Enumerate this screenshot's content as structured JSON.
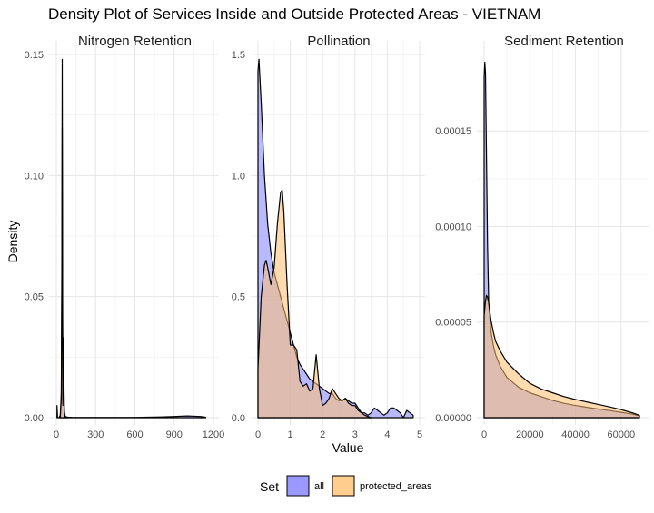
{
  "title": "Density Plot of Services Inside and Outside Protected Areas - VIETNAM",
  "colors": {
    "all_fill": "#8080ff",
    "protected_fill": "#ffc070",
    "grid_major": "#e6e6e6",
    "grid_minor": "#f2f2f2",
    "outline": "#000000"
  },
  "chart_data": [
    {
      "type": "area",
      "facet": "Nitrogen Retention",
      "xlabel": "Value",
      "ylabel": "Density",
      "xlim": [
        0,
        1200
      ],
      "ylim": [
        0,
        0.15
      ],
      "x_ticks": [
        "0",
        "300",
        "600",
        "900",
        "1200"
      ],
      "y_ticks": [
        "0.00",
        "0.05",
        "0.10",
        "0.15"
      ],
      "series": [
        {
          "name": "all",
          "x": [
            5,
            10,
            20,
            30,
            38,
            42,
            45,
            48,
            50,
            52,
            55,
            58,
            60,
            63,
            66,
            70,
            78,
            90,
            120,
            200,
            400,
            600,
            800,
            900,
            1000,
            1100,
            1140
          ],
          "y": [
            0.005,
            0.0,
            0.0,
            0.001,
            0.01,
            0.06,
            0.148,
            0.05,
            0.006,
            0.033,
            0.01,
            0.015,
            0.004,
            0.002,
            0.001,
            0.0005,
            0.0003,
            0.0002,
            0.0001,
            0.0001,
            0.0001,
            0.0001,
            0.0003,
            0.0005,
            0.0007,
            0.0005,
            0.0002
          ]
        },
        {
          "name": "protected_areas",
          "x": [
            30,
            38,
            42,
            45,
            48,
            50,
            52,
            55,
            58,
            60,
            63,
            66,
            70,
            78,
            90
          ],
          "y": [
            0.0,
            0.008,
            0.05,
            0.12,
            0.04,
            0.005,
            0.025,
            0.008,
            0.012,
            0.003,
            0.001,
            0.0005,
            0.0002,
            0.0001,
            0.0
          ]
        }
      ]
    },
    {
      "type": "area",
      "facet": "Pollination",
      "xlabel": "Value",
      "ylabel": "Density",
      "xlim": [
        0,
        5
      ],
      "ylim": [
        0,
        1.5
      ],
      "x_ticks": [
        "0",
        "1",
        "2",
        "3",
        "4",
        "5"
      ],
      "y_ticks": [
        "0.0",
        "0.5",
        "1.0",
        "1.5"
      ],
      "series": [
        {
          "name": "all",
          "x": [
            0.0,
            0.03,
            0.1,
            0.2,
            0.3,
            0.4,
            0.5,
            0.6,
            0.7,
            0.8,
            0.9,
            1.0,
            1.1,
            1.2,
            1.3,
            1.4,
            1.5,
            1.6,
            1.7,
            1.8,
            1.9,
            2.0,
            2.1,
            2.2,
            2.3,
            2.4,
            2.5,
            2.6,
            2.7,
            2.8,
            2.9,
            3.0,
            3.1,
            3.2,
            3.3,
            3.4,
            3.5,
            3.6,
            3.7,
            3.8,
            3.9,
            4.0,
            4.1,
            4.2,
            4.3,
            4.4,
            4.5,
            4.6,
            4.7,
            4.8
          ],
          "y": [
            1.43,
            1.48,
            1.3,
            1.0,
            0.8,
            0.68,
            0.6,
            0.55,
            0.5,
            0.45,
            0.4,
            0.35,
            0.3,
            0.25,
            0.22,
            0.2,
            0.18,
            0.16,
            0.15,
            0.14,
            0.13,
            0.12,
            0.11,
            0.1,
            0.1,
            0.08,
            0.07,
            0.07,
            0.08,
            0.07,
            0.06,
            0.06,
            0.04,
            0.02,
            0.02,
            0.01,
            0.02,
            0.04,
            0.03,
            0.02,
            0.01,
            0.02,
            0.04,
            0.04,
            0.03,
            0.02,
            0.0,
            0.03,
            0.02,
            0.01
          ]
        },
        {
          "name": "protected_areas",
          "x": [
            0.0,
            0.1,
            0.2,
            0.25,
            0.3,
            0.4,
            0.5,
            0.6,
            0.7,
            0.75,
            0.8,
            0.9,
            1.0,
            1.1,
            1.2,
            1.3,
            1.4,
            1.5,
            1.6,
            1.7,
            1.8,
            1.9,
            2.0,
            2.1,
            2.2,
            2.3,
            2.4,
            2.5,
            2.6,
            2.7,
            2.8,
            2.9,
            3.0,
            3.1,
            3.2,
            3.3,
            3.4,
            3.5
          ],
          "y": [
            0.2,
            0.5,
            0.63,
            0.65,
            0.62,
            0.55,
            0.62,
            0.8,
            0.93,
            0.94,
            0.85,
            0.55,
            0.3,
            0.3,
            0.28,
            0.15,
            0.13,
            0.14,
            0.11,
            0.12,
            0.26,
            0.12,
            0.05,
            0.06,
            0.08,
            0.12,
            0.1,
            0.08,
            0.07,
            0.08,
            0.06,
            0.05,
            0.05,
            0.03,
            0.02,
            0.01,
            0.005,
            0.0
          ]
        }
      ]
    },
    {
      "type": "area",
      "facet": "Sediment Retention",
      "xlabel": "Value",
      "ylabel": "Density",
      "xlim": [
        0,
        70000
      ],
      "ylim": [
        0,
        0.00019
      ],
      "x_ticks": [
        "0",
        "20000",
        "40000",
        "60000"
      ],
      "y_ticks": [
        "0.00000",
        "0.00005",
        "0.00010",
        "0.00015"
      ],
      "series": [
        {
          "name": "all",
          "x": [
            0,
            300,
            600,
            1000,
            1500,
            2000,
            3000,
            4000,
            5000,
            7000,
            10000,
            15000,
            20000,
            25000,
            30000,
            35000,
            40000,
            45000,
            50000,
            55000,
            60000,
            65000,
            68000
          ],
          "y": [
            0.000178,
            0.000186,
            0.00018,
            0.00014,
            9e-05,
            6e-05,
            4.5e-05,
            3.8e-05,
            3.3e-05,
            2.7e-05,
            2.1e-05,
            1.6e-05,
            1.3e-05,
            1.1e-05,
            9e-06,
            7.5e-06,
            6.4e-06,
            5.4e-06,
            4.5e-06,
            3.7e-06,
            2.8e-06,
            1.8e-06,
            1e-06
          ]
        },
        {
          "name": "protected_areas",
          "x": [
            0,
            500,
            1000,
            1500,
            2000,
            3000,
            4000,
            5000,
            7000,
            10000,
            15000,
            20000,
            25000,
            30000,
            35000,
            40000,
            45000,
            50000,
            55000,
            60000,
            65000,
            68000
          ],
          "y": [
            5.3e-05,
            6e-05,
            6.4e-05,
            6.3e-05,
            6e-05,
            5.1e-05,
            4.5e-05,
            4e-05,
            3.5e-05,
            2.9e-05,
            2.3e-05,
            1.8e-05,
            1.5e-05,
            1.3e-05,
            1.1e-05,
            9.5e-06,
            8.2e-06,
            6.9e-06,
            5.6e-06,
            4.2e-06,
            2.5e-06,
            1.2e-06
          ]
        }
      ]
    }
  ],
  "legend": {
    "title": "Set",
    "entries": [
      "all",
      "protected_areas"
    ]
  }
}
